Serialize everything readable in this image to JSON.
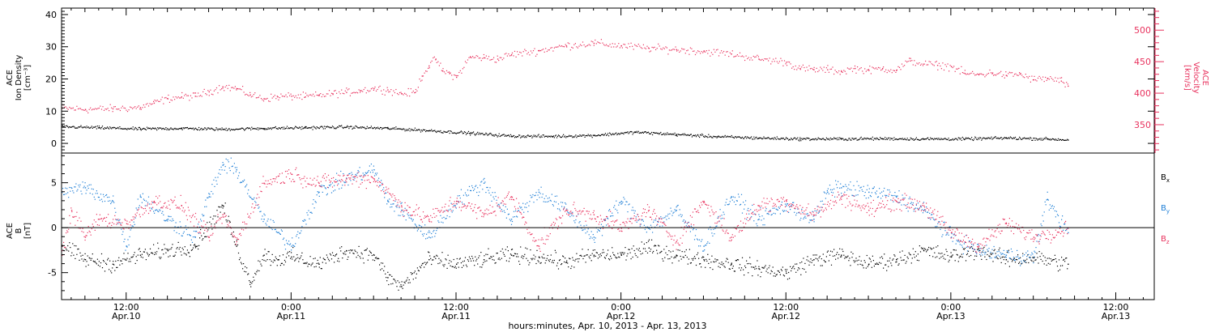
{
  "colors": {
    "black": "#000000",
    "pink": "#e8325e",
    "blue": "#1f7fd6",
    "axis": "#000000"
  },
  "x_axis": {
    "title": "hours:minutes, Apr. 10, 2013 - Apr. 13, 2013",
    "ticks": [
      {
        "time": "12:00",
        "date": "Apr.10",
        "hours": 12
      },
      {
        "time": "0:00",
        "date": "Apr.11",
        "hours": 24
      },
      {
        "time": "12:00",
        "date": "Apr.11",
        "hours": 36
      },
      {
        "time": "0:00",
        "date": "Apr.12",
        "hours": 48
      },
      {
        "time": "12:00",
        "date": "Apr.12",
        "hours": 60
      },
      {
        "time": "0:00",
        "date": "Apr.13",
        "hours": 72
      },
      {
        "time": "12:00",
        "date": "Apr.13",
        "hours": 84
      }
    ],
    "range_hours": [
      7.3,
      86.8
    ]
  },
  "chart_data": [
    {
      "type": "scatter",
      "panel": "top",
      "left_axis": {
        "label_lines": [
          "ACE",
          "Ion Density",
          "[cm⁻³]"
        ],
        "ylim": [
          -3,
          42
        ],
        "ticks": [
          0,
          10,
          20,
          30,
          40
        ]
      },
      "right_axis": {
        "label_lines": [
          "ACE",
          "Velocity",
          "[km/s]"
        ],
        "ylim": [
          305,
          535
        ],
        "ticks": [
          350,
          400,
          450,
          500
        ],
        "color": "#e8325e"
      },
      "series": [
        {
          "axis": "right",
          "color": "#e8325e",
          "x_hours": [
            7.3,
            9,
            11,
            13,
            14,
            15,
            16,
            17,
            18,
            19,
            20,
            21,
            22,
            23,
            24,
            25,
            26,
            27,
            28,
            29,
            30,
            31,
            32,
            33,
            33.5,
            34,
            34.5,
            35,
            35.5,
            36,
            37,
            38,
            39,
            40,
            42,
            44,
            46,
            48,
            50,
            52,
            54,
            56,
            58,
            60,
            61,
            62,
            63,
            64,
            65,
            66,
            67,
            68,
            69,
            70,
            71,
            72,
            73,
            74,
            75,
            76,
            77,
            78,
            79,
            80,
            80.5
          ],
          "values": [
            377,
            375,
            376,
            378,
            385,
            392,
            395,
            396,
            403,
            411,
            408,
            398,
            392,
            395,
            396,
            395,
            397,
            400,
            402,
            405,
            408,
            406,
            400,
            402,
            428,
            444,
            455,
            436,
            432,
            426,
            458,
            457,
            455,
            462,
            468,
            476,
            480,
            476,
            472,
            470,
            467,
            463,
            455,
            450,
            440,
            438,
            438,
            435,
            440,
            437,
            440,
            437,
            452,
            447,
            445,
            443,
            432,
            430,
            433,
            429,
            431,
            422,
            424,
            420,
            412
          ]
        },
        {
          "axis": "left",
          "color": "#000000",
          "x_hours": [
            7.3,
            10,
            13,
            16,
            19,
            22,
            25,
            28,
            31,
            34,
            37,
            40,
            43,
            46,
            49,
            52,
            55,
            58,
            61,
            64,
            67,
            70,
            73,
            76,
            79,
            80.5
          ],
          "values": [
            5.3,
            5.0,
            4.6,
            4.8,
            4.5,
            4.8,
            5.0,
            5.2,
            4.8,
            4.1,
            3.3,
            2.4,
            2.3,
            2.6,
            3.6,
            2.9,
            2.2,
            1.8,
            1.5,
            1.5,
            1.6,
            1.5,
            1.5,
            1.8,
            1.5,
            1.2
          ]
        }
      ]
    },
    {
      "type": "scatter",
      "panel": "bottom",
      "left_axis": {
        "label_lines": [
          "ACE",
          "B",
          "[nT]"
        ],
        "ylim": [
          -8,
          8.3
        ],
        "ticks": [
          -5,
          0,
          5
        ],
        "zero_line": true
      },
      "legend": [
        {
          "label": "Bx",
          "color": "#000000"
        },
        {
          "label": "By",
          "color": "#1f7fd6"
        },
        {
          "label": "Bz",
          "color": "#e8325e"
        }
      ],
      "series": [
        {
          "name": "Bx",
          "color": "#000000",
          "x_hours": [
            7.3,
            9,
            11,
            13,
            15,
            17,
            19,
            20,
            21,
            22,
            23,
            24,
            26,
            28,
            30,
            31,
            32,
            34,
            36,
            38,
            40,
            42,
            44,
            46,
            48,
            50,
            52,
            54,
            56,
            58,
            60,
            62,
            64,
            66,
            68,
            70,
            72,
            74,
            76,
            78,
            80.5
          ],
          "values": [
            -2,
            -3.5,
            -4,
            -3,
            -2.5,
            -2,
            2.5,
            -2,
            -6,
            -3,
            -3.5,
            -3.2,
            -4,
            -2.5,
            -3,
            -5.5,
            -6.5,
            -3.5,
            -4,
            -3.5,
            -3,
            -3.2,
            -3.8,
            -3,
            -3,
            -2.2,
            -3,
            -3.5,
            -4,
            -4.5,
            -5,
            -3.5,
            -3,
            -4,
            -3.5,
            -2.5,
            -3.2,
            -2.5,
            -3.5,
            -3.3,
            -4
          ]
        },
        {
          "name": "By",
          "color": "#1f7fd6",
          "x_hours": [
            7.3,
            9,
            11,
            12,
            13,
            15,
            17,
            18,
            19,
            20,
            22,
            24,
            26,
            28,
            30,
            31,
            32,
            34,
            36,
            38,
            40,
            42,
            44,
            46,
            48,
            50,
            52,
            54,
            56,
            58,
            60,
            62,
            63,
            64,
            66,
            68,
            70,
            72,
            74,
            76,
            78,
            79,
            80.5
          ],
          "values": [
            4,
            4.5,
            3,
            -2,
            3.5,
            1,
            -1,
            3.5,
            7,
            6.5,
            1,
            -2,
            4,
            5.5,
            6.5,
            3,
            2,
            -1,
            3,
            5,
            1,
            4,
            2,
            -1,
            3,
            0,
            2,
            -2,
            3.5,
            1,
            2.5,
            1,
            4,
            4.5,
            4,
            3.5,
            2,
            -1,
            -2.5,
            -3,
            -3.2,
            3.2,
            -0.5
          ]
        },
        {
          "name": "Bz",
          "color": "#e8325e",
          "x_hours": [
            7.3,
            8,
            9,
            10,
            12,
            14,
            16,
            18,
            19,
            20,
            22,
            24,
            26,
            28,
            30,
            32,
            34,
            36,
            38,
            40,
            42,
            44,
            46,
            48,
            50,
            52,
            54,
            56,
            58,
            60,
            62,
            64,
            66,
            68,
            70,
            72,
            74,
            76,
            78,
            80.5
          ],
          "values": [
            -3,
            2,
            -1,
            1,
            0.5,
            3,
            2.5,
            -1,
            1.5,
            -1.5,
            5,
            6,
            5,
            5.5,
            5.5,
            2.5,
            1,
            3,
            1.5,
            3.5,
            -2,
            2,
            1.5,
            0,
            2,
            -1.5,
            3,
            -1,
            2.5,
            3,
            1.5,
            3.5,
            2,
            3,
            2.5,
            -0.5,
            -2,
            0.5,
            -1,
            0
          ]
        }
      ]
    }
  ]
}
